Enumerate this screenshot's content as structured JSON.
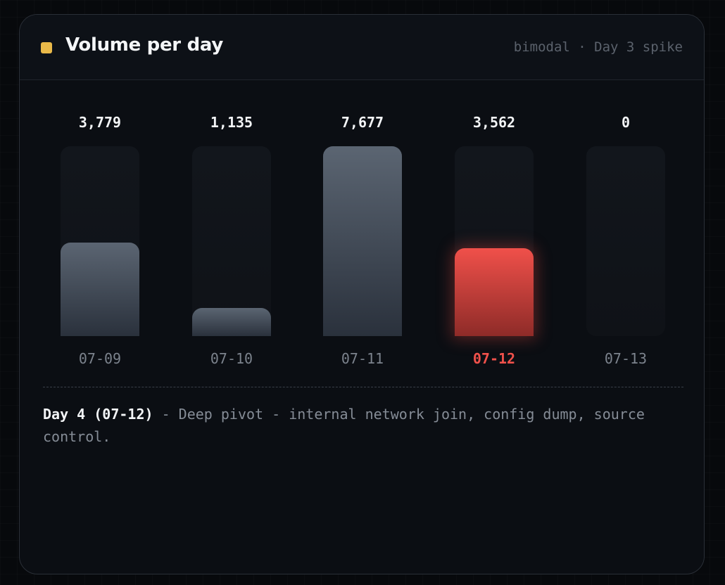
{
  "header": {
    "title": "Volume per day",
    "meta": "bimodal · Day 3 spike",
    "accent_color": "#e9b949"
  },
  "chart_data": {
    "type": "bar",
    "categories": [
      "07-09",
      "07-10",
      "07-11",
      "07-12",
      "07-13"
    ],
    "values": [
      3779,
      1135,
      7677,
      3562,
      0
    ],
    "value_labels": [
      "3,779",
      "1,135",
      "7,677",
      "3,562",
      "0"
    ],
    "highlight_index": 3,
    "ylim": [
      0,
      7677
    ],
    "bar_color": "#4a5360",
    "highlight_color": "#f0504a",
    "grid": false,
    "legend": "none"
  },
  "note": {
    "lead": "Day 4 (07-12)",
    "text": " - Deep pivot - internal network join, config dump, source control."
  }
}
